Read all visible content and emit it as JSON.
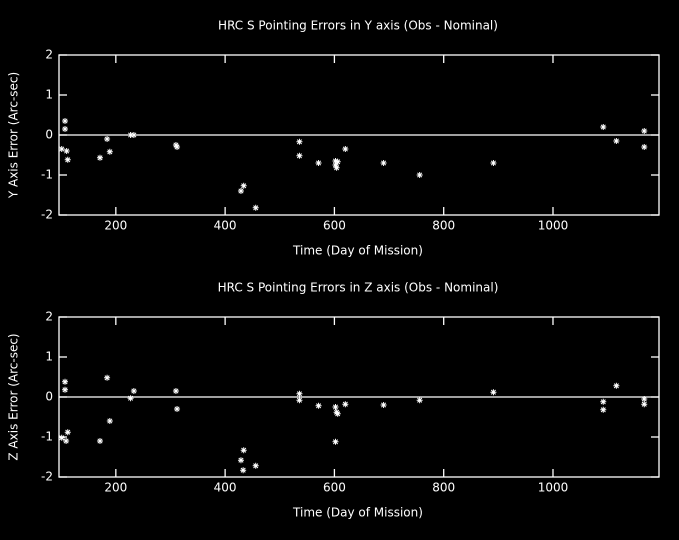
{
  "chart_data": [
    {
      "type": "scatter",
      "title": "HRC S Pointing Errors in Y axis (Obs - Nominal)",
      "xlabel": "Time (Day of Mission)",
      "ylabel": "Y Axis Error (Arc-sec)",
      "x": [
        107,
        107,
        101,
        110,
        112,
        171,
        184,
        189,
        227,
        233,
        310,
        312,
        429,
        434,
        456,
        536,
        536,
        571,
        602,
        602,
        604,
        606,
        620,
        690,
        756,
        891,
        1092,
        1116,
        1167,
        1167
      ],
      "values": [
        0.35,
        0.15,
        -0.35,
        -0.4,
        -0.62,
        -0.57,
        -0.1,
        -0.42,
        0,
        0,
        -0.25,
        -0.3,
        -1.4,
        -1.27,
        -1.82,
        -0.17,
        -0.52,
        -0.7,
        -0.65,
        -0.75,
        -0.82,
        -0.67,
        -0.35,
        -0.7,
        -1.0,
        -0.7,
        0.2,
        -0.15,
        0.1,
        -0.3
      ],
      "color": "#ffffff",
      "hline": 0,
      "xlim": [
        96,
        1194
      ],
      "ylim": [
        -2,
        2
      ],
      "xticks": [
        200,
        400,
        600,
        800,
        1000
      ],
      "yticks": [
        -2,
        -1,
        0,
        1,
        2
      ]
    },
    {
      "type": "scatter",
      "title": "HRC S Pointing Errors in  Z axis (Obs - Nominal)",
      "xlabel": "Time (Day of Mission)",
      "ylabel": "Z Axis Error (Arc-sec)",
      "x": [
        107,
        107,
        101,
        109,
        112,
        171,
        184,
        189,
        227,
        233,
        310,
        312,
        429,
        434,
        433,
        456,
        536,
        536,
        571,
        602,
        604,
        606,
        602,
        620,
        690,
        756,
        891,
        1092,
        1092,
        1116,
        1167,
        1167
      ],
      "values": [
        0.38,
        0.18,
        -1.02,
        -1.1,
        -0.88,
        -1.1,
        0.48,
        -0.6,
        -0.03,
        0.15,
        0.15,
        -0.3,
        -1.58,
        -1.33,
        -1.83,
        -1.72,
        0.08,
        -0.08,
        -0.22,
        -0.25,
        -0.38,
        -0.42,
        -1.12,
        -0.18,
        -0.2,
        -0.08,
        0.12,
        -0.12,
        -0.32,
        0.28,
        -0.05,
        -0.18
      ],
      "color": "#ffffff",
      "hline": 0,
      "xlim": [
        96,
        1194
      ],
      "ylim": [
        -2,
        2
      ],
      "xticks": [
        200,
        400,
        600,
        800,
        1000
      ],
      "yticks": [
        -2,
        -1,
        0,
        1,
        2
      ]
    }
  ]
}
